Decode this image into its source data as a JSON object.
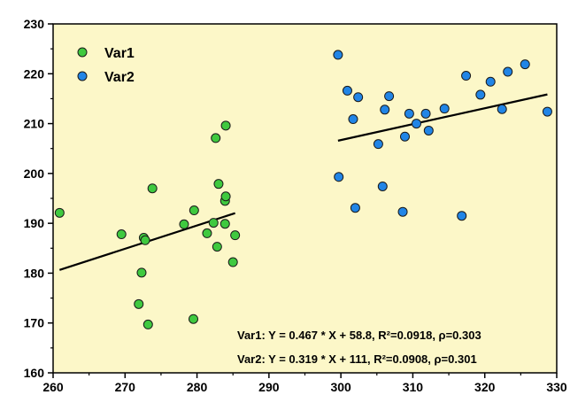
{
  "chart_data": {
    "type": "scatter",
    "title": "",
    "xlabel": "",
    "ylabel": "",
    "xlim": [
      260,
      330
    ],
    "ylim": [
      160,
      230
    ],
    "xticks": [
      260,
      270,
      280,
      290,
      300,
      310,
      320,
      330
    ],
    "yticks": [
      160,
      170,
      180,
      190,
      200,
      210,
      220,
      230
    ],
    "grid": false,
    "legend_position": "top-left",
    "background_color": "#fcf7c8",
    "series": [
      {
        "name": "Var1",
        "color": "#3fc93f",
        "points": [
          [
            260.9,
            192.1
          ],
          [
            269.5,
            187.8
          ],
          [
            271.9,
            173.8
          ],
          [
            272.3,
            180.1
          ],
          [
            272.6,
            187.1
          ],
          [
            272.8,
            186.6
          ],
          [
            273.2,
            169.7
          ],
          [
            273.8,
            197.0
          ],
          [
            278.2,
            189.8
          ],
          [
            279.5,
            170.8
          ],
          [
            279.6,
            192.6
          ],
          [
            281.4,
            188.0
          ],
          [
            282.3,
            190.1
          ],
          [
            282.6,
            207.1
          ],
          [
            282.8,
            185.3
          ],
          [
            283.0,
            197.9
          ],
          [
            283.9,
            189.9
          ],
          [
            283.9,
            194.5
          ],
          [
            284.0,
            195.4
          ],
          [
            284.0,
            209.6
          ],
          [
            285.0,
            182.2
          ],
          [
            285.3,
            187.6
          ]
        ],
        "fit": {
          "slope": 0.467,
          "intercept": 58.8,
          "x_range": [
            260.9,
            285.3
          ]
        },
        "annotation": "Var1:  Y = 0.467 * X + 58.8, R²=0.0918, ρ=0.303"
      },
      {
        "name": "Var2",
        "color": "#2185e6",
        "points": [
          [
            299.6,
            223.8
          ],
          [
            299.7,
            199.3
          ],
          [
            300.9,
            216.6
          ],
          [
            301.7,
            210.9
          ],
          [
            302.0,
            193.1
          ],
          [
            302.4,
            215.3
          ],
          [
            305.2,
            205.9
          ],
          [
            305.8,
            197.4
          ],
          [
            306.1,
            212.8
          ],
          [
            306.7,
            215.5
          ],
          [
            308.6,
            192.3
          ],
          [
            308.9,
            207.4
          ],
          [
            309.5,
            212.0
          ],
          [
            310.5,
            210.0
          ],
          [
            311.8,
            212.0
          ],
          [
            312.2,
            208.6
          ],
          [
            314.4,
            213.0
          ],
          [
            316.8,
            191.5
          ],
          [
            317.4,
            219.6
          ],
          [
            319.4,
            215.8
          ],
          [
            320.8,
            218.4
          ],
          [
            322.4,
            212.9
          ],
          [
            323.2,
            220.4
          ],
          [
            325.6,
            221.9
          ],
          [
            328.7,
            212.4
          ]
        ],
        "fit": {
          "slope": 0.319,
          "intercept": 111,
          "x_range": [
            299.6,
            328.7
          ]
        },
        "annotation": "Var2:  Y = 0.319 * X + 111, R²=0.0908, ρ=0.301"
      }
    ]
  }
}
